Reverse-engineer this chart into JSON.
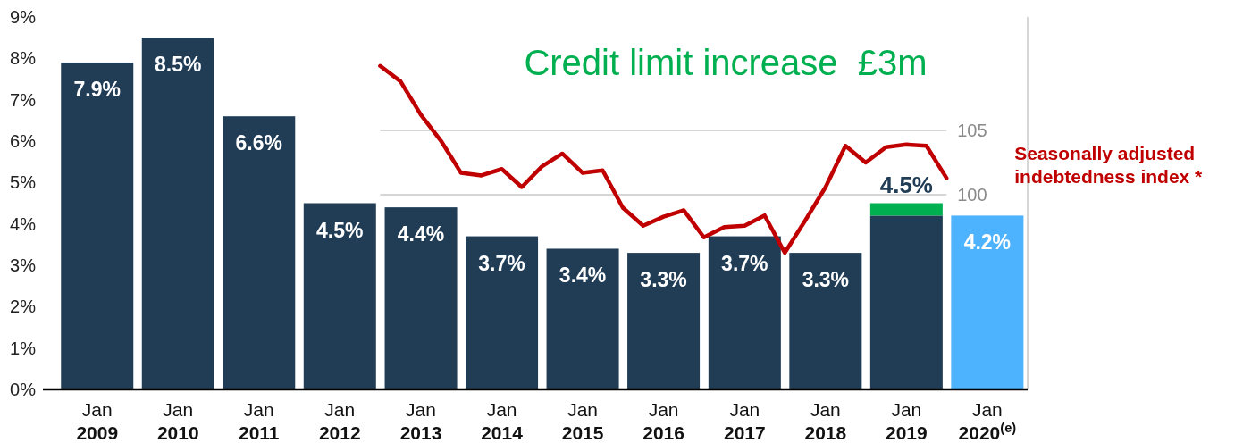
{
  "chart_data": {
    "type": "bar",
    "stacked": true,
    "x": [
      "2009-01",
      "2010-01",
      "2011-01",
      "2012-01",
      "2013-01",
      "2014-01",
      "2015-01",
      "2016-01",
      "2017-01",
      "2018-01",
      "2019-01",
      "2020-01"
    ],
    "xlim": [
      "2008-05",
      "2020-07"
    ],
    "xticks": [
      {
        "value": "2009-01",
        "label": "Jan\n2009"
      },
      {
        "value": "2010-01",
        "label": "Jan\n2010"
      },
      {
        "value": "2011-01",
        "label": "Jan\n2011"
      },
      {
        "value": "2012-01",
        "label": "Jan\n2012"
      },
      {
        "value": "2013-01",
        "label": "Jan\n2013"
      },
      {
        "value": "2014-01",
        "label": "Jan\n2014"
      },
      {
        "value": "2015-01",
        "label": "Jan\n2015"
      },
      {
        "value": "2016-01",
        "label": "Jan\n2016"
      },
      {
        "value": "2017-01",
        "label": "Jan\n2017"
      },
      {
        "value": "2018-01",
        "label": "Jan\n2018"
      },
      {
        "value": "2019-01",
        "label": "Jan\n2019"
      },
      {
        "value": "2020-01",
        "label": "Jan\n2020$^{(e)}$"
      }
    ],
    "ylim": [
      0,
      9
    ],
    "yticks": [
      {
        "value": 0,
        "label": "0%"
      },
      {
        "value": 1,
        "label": "1%"
      },
      {
        "value": 2,
        "label": "2%"
      },
      {
        "value": 3,
        "label": "3%"
      },
      {
        "value": 4,
        "label": "4%"
      },
      {
        "value": 5,
        "label": "5%"
      },
      {
        "value": 6,
        "label": "6%"
      },
      {
        "value": 7,
        "label": "7%"
      },
      {
        "value": 8,
        "label": "8%"
      },
      {
        "value": 9,
        "label": "9%"
      }
    ],
    "y2lim": [
      84.9,
      113.8
    ],
    "y2ticks": [
      100,
      105
    ],
    "ref_lines": [
      {
        "axis": "y2",
        "value": 100,
        "color": "#c8c8c8"
      },
      {
        "axis": "y2",
        "value": 105,
        "color": "#c8c8c8"
      }
    ],
    "series": [
      {
        "color": "#213d56",
        "colors": [
          "#213d56",
          "#213d56",
          "#213d56",
          "#213d56",
          "#213d56",
          "#213d56",
          "#213d56",
          "#213d56",
          "#213d56",
          "#213d56",
          "#213d56",
          "#4db3ff"
        ],
        "values": [
          7.9,
          8.5,
          6.6,
          4.5,
          4.4,
          3.7,
          3.4,
          3.3,
          3.7,
          3.3,
          4.2,
          4.2
        ],
        "value_labels": [
          "7.9%",
          "8.5%",
          "6.6%",
          "4.5%",
          "4.4%",
          "3.7%",
          "3.4%",
          "3.3%",
          "3.7%",
          "3.3%",
          null,
          "4.2%"
        ]
      },
      {
        "color": "#00b050",
        "values": [
          null,
          null,
          null,
          null,
          null,
          null,
          null,
          null,
          null,
          null,
          0.3,
          null
        ]
      },
      {
        "type": "line",
        "axis": "y2",
        "name": "Seasonally adjusted indebtedness index *",
        "color": "#c00000",
        "line_style": "solid",
        "x": [
          "2012-07",
          "2012-10",
          "2013-01",
          "2013-04",
          "2013-07",
          "2013-10",
          "2014-01",
          "2014-04",
          "2014-07",
          "2014-10",
          "2015-01",
          "2015-04",
          "2015-07",
          "2015-10",
          "2016-01",
          "2016-04",
          "2016-07",
          "2016-10",
          "2017-01",
          "2017-04",
          "2017-07",
          "2017-10",
          "2018-01",
          "2018-04",
          "2018-07",
          "2018-10",
          "2019-01",
          "2019-04",
          "2019-07"
        ],
        "values": [
          110.0,
          108.8,
          106.2,
          104.2,
          101.7,
          101.5,
          102.0,
          100.6,
          102.2,
          103.2,
          101.7,
          101.9,
          99.0,
          97.6,
          98.3,
          98.8,
          96.7,
          97.5,
          97.6,
          98.4,
          95.5,
          98.0,
          100.6,
          103.8,
          102.5,
          103.7,
          103.9,
          103.8,
          101.3
        ]
      }
    ],
    "totals": [
      null,
      null,
      null,
      null,
      null,
      null,
      null,
      null,
      null,
      null,
      "4.5%",
      null
    ],
    "annotations": [
      "Credit limit increase  £3m"
    ]
  }
}
